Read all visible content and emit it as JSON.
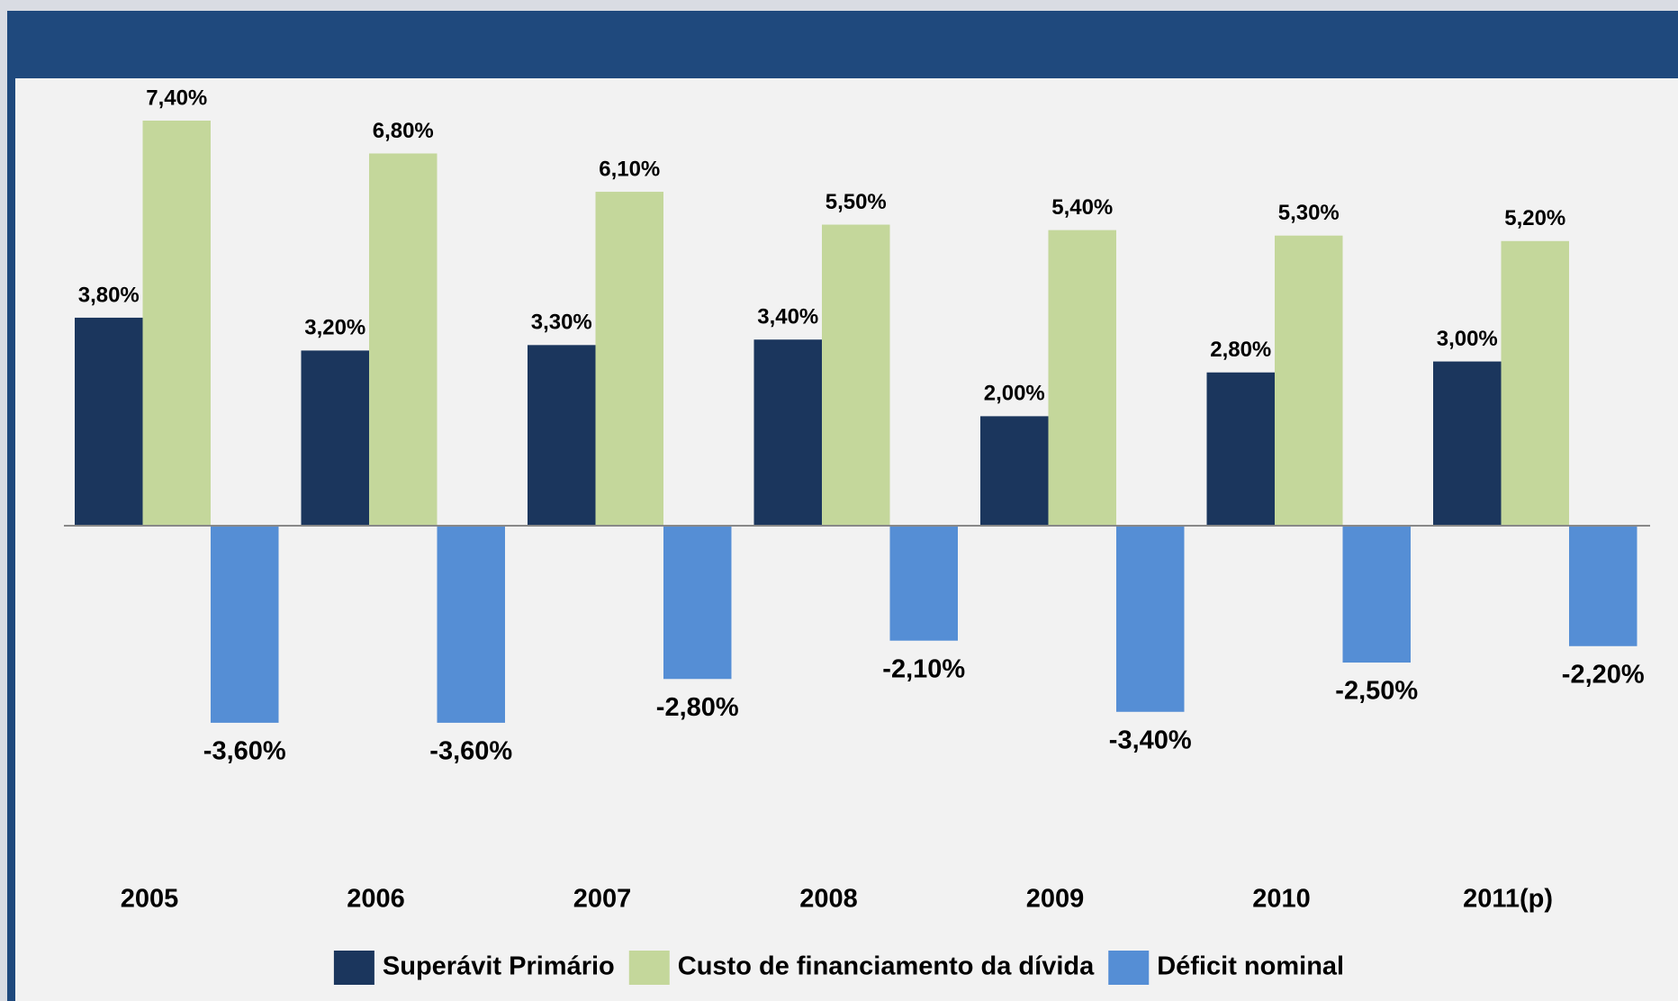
{
  "chart_data": {
    "type": "bar",
    "categories": [
      "2005",
      "2006",
      "2007",
      "2008",
      "2009",
      "2010",
      "2011(p)"
    ],
    "series": [
      {
        "name": "Superávit Primário",
        "color": "#1b365d",
        "values": [
          3.8,
          3.2,
          3.3,
          3.4,
          2.0,
          2.8,
          3.0
        ],
        "value_labels": [
          "3,80%",
          "3,20%",
          "3,30%",
          "3,40%",
          "2,00%",
          "2,80%",
          "3,00%"
        ]
      },
      {
        "name": "Custo de financiamento da dívida",
        "color": "#c4d79b",
        "values": [
          7.4,
          6.8,
          6.1,
          5.5,
          5.4,
          5.3,
          5.2
        ],
        "value_labels": [
          "7,40%",
          "6,80%",
          "6,10%",
          "5,50%",
          "5,40%",
          "5,30%",
          "5,20%"
        ]
      },
      {
        "name": "Déficit nominal",
        "color": "#558ed5",
        "values": [
          -3.6,
          -3.6,
          -2.8,
          -2.1,
          -3.4,
          -2.5,
          -2.2
        ],
        "value_labels": [
          "-3,60%",
          "-3,60%",
          "-2,80%",
          "-2,10%",
          "-3,40%",
          "-2,50%",
          "-2,20%"
        ]
      }
    ],
    "legend": "bottom"
  }
}
